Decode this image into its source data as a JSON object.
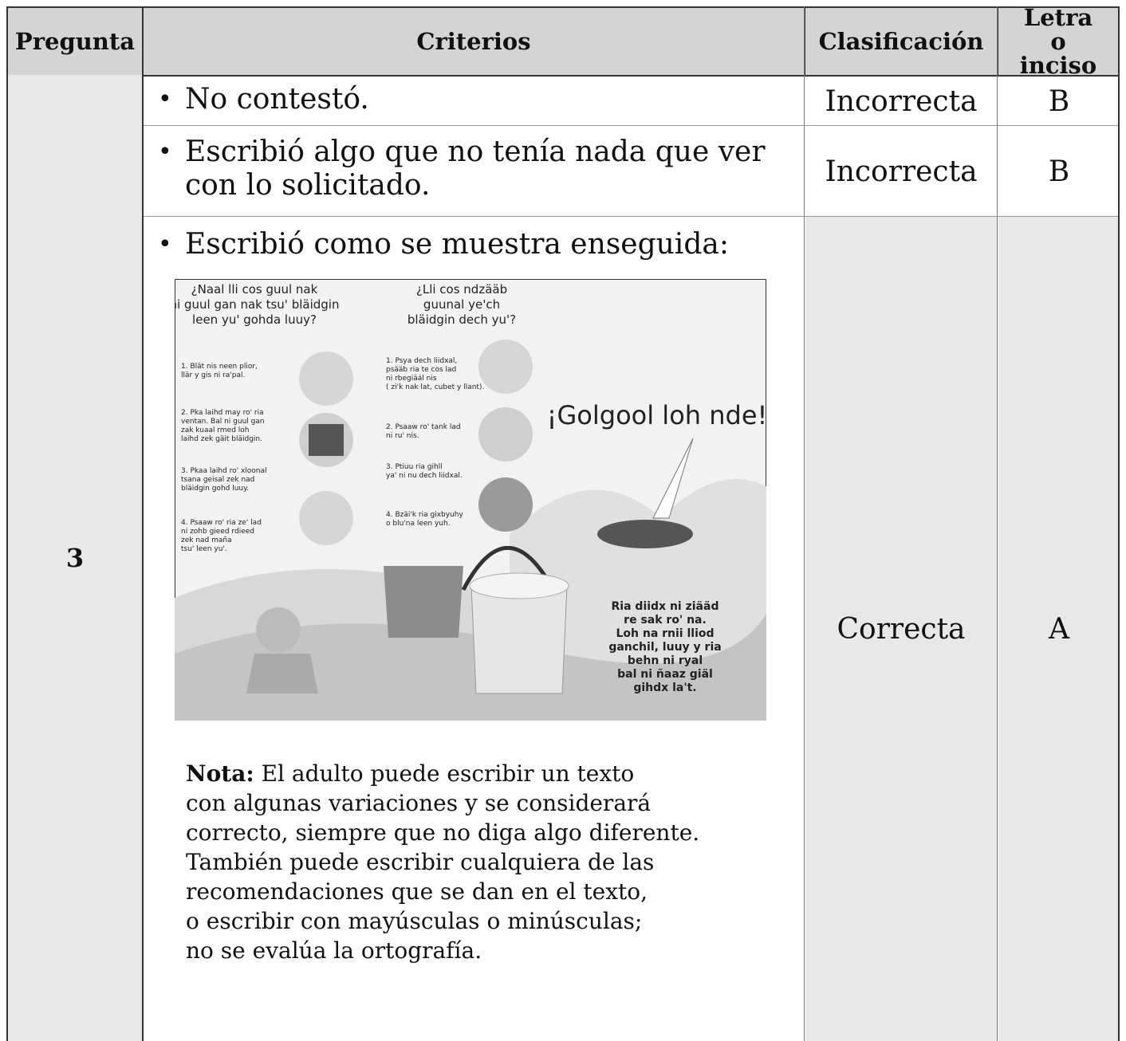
{
  "table": {
    "headers": [
      "Pregunta",
      "Criterios",
      "Clasificación",
      "Letra o inciso"
    ],
    "question": "3",
    "rows": [
      {
        "criterion": "No contestó.",
        "classification": "Incorrecta",
        "letter": "B"
      },
      {
        "criterion": "Escribió algo que no tenía nada que ver con lo solicitado.",
        "classification": "Incorrecta",
        "letter": "B"
      },
      {
        "criterion": "Escribió como se muestra enseguida:",
        "classification": "Correcta",
        "letter": "A"
      }
    ],
    "note": {
      "label": "Nota:",
      "lines": [
        "El adulto puede escribir un texto",
        "con algunas variaciones y se considerará",
        "correcto, siempre que no diga algo diferente.",
        "También puede escribir cualquiera de las",
        "recomendaciones que se dan en el texto,",
        "o escribir con mayúsculas o minúsculas;",
        "no se evalúa la ortografía."
      ]
    }
  },
  "poster": {
    "question_left": [
      "¿Naal lli cos guul nak",
      "ni guul gan nak tsu' bläidgin",
      "leen yu' gohda luuy?"
    ],
    "question_right": [
      "¿Lli cos ndzääb",
      "guunal ye'ch",
      "bläidgin dech yu'?"
    ],
    "steps_left": [
      [
        "1. Blät nis neen plior,",
        "llär y gis ni ra'pal."
      ],
      [
        "2. Pka laihd may ro' ria",
        "ventan. Bal ni guul gan",
        "zak kuaal rmed loh",
        "laihd zek gäit bläidgin."
      ],
      [
        "3. Pkaa laihd ro' xloonal",
        "tsana geisal zek nad",
        "bläidgin gohd luuy."
      ],
      [
        "4. Psaaw ro' ria ze' lad",
        "ni zohb gieed rdieed",
        "zek nad maña",
        "tsu' leen yu'."
      ]
    ],
    "steps_right": [
      [
        "1. Psya dech liidxal,",
        "psääb ria te cos lad",
        "ni rbegiäál nis",
        "( zi'k nak lat, cubet y llant)."
      ],
      [
        "2. Psaaw ro' tank lad",
        "ni ru' nis."
      ],
      [
        "3. Ptiuu ria gihll",
        "ya' ni nu dech liidxal."
      ],
      [
        "4. Bzäi'k ria gixbyuhy",
        "o blu'na leen yuh."
      ]
    ],
    "headline": "¡Golgool loh nde!",
    "caption": [
      "Ria diidx ni ziääd",
      "re sak ro' na.",
      "Loh na rnii lliod",
      "ganchil, luuy y ria",
      "behn ni ryal",
      "bal ni ñaaz giäl",
      "gihdx la't."
    ]
  }
}
